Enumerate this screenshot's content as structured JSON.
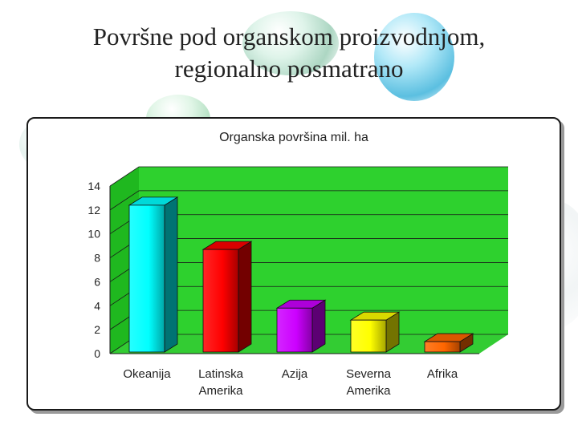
{
  "slide": {
    "title_line1": "Površne pod organskom proizvodnjom,",
    "title_line2": "regionalno posmatrano"
  },
  "colors": {
    "plot_back": "#2ed12e",
    "plot_floor": "#33cc33",
    "plot_side": "#1fb81f"
  },
  "chart_data": {
    "type": "bar",
    "title": "Organska površina mil. ha",
    "categories": [
      "Okeanija",
      "Latinska Amerika",
      "Azija",
      "Severna Amerika",
      "Afrika"
    ],
    "category_lines": [
      [
        "Okeanija"
      ],
      [
        "Latinska",
        "Amerika"
      ],
      [
        "Azija"
      ],
      [
        "Severna",
        "Amerika"
      ],
      [
        "Afrika"
      ]
    ],
    "values": [
      12.4,
      8.7,
      3.8,
      2.8,
      1.0
    ],
    "bar_colors": [
      "#00ffff",
      "#ff0000",
      "#cc00ff",
      "#ffff00",
      "#ff6600"
    ],
    "ylim": [
      0,
      14
    ],
    "yticks": [
      0,
      2,
      4,
      6,
      8,
      10,
      12,
      14
    ],
    "grid": true,
    "legend": "none",
    "bar_style": "3d"
  }
}
